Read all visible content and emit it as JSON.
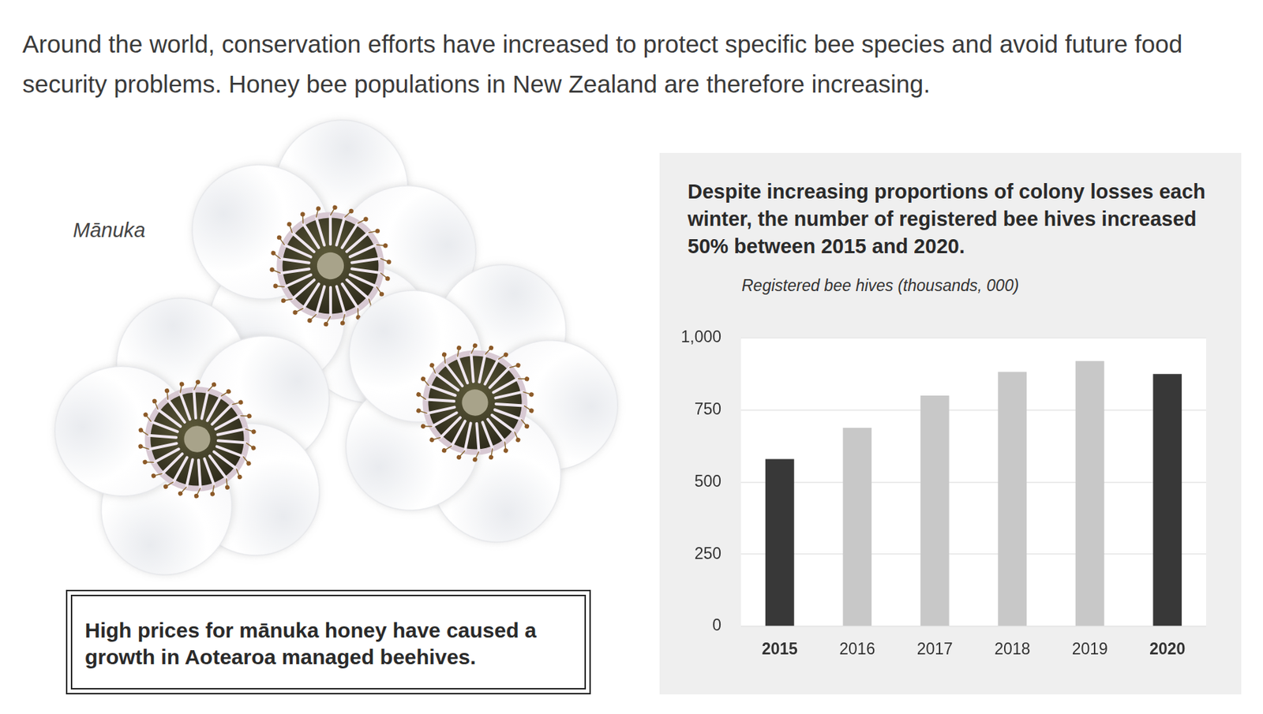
{
  "page": {
    "intro": "Around the world, conservation efforts have increased to protect specific bee species and avoid future food security problems. Honey bee populations in New Zealand are therefore increasing.",
    "illustration_label": "Mānuka",
    "caption": "High prices for mānuka honey have caused a growth in Aotearoa managed beehives."
  },
  "chart_data": {
    "type": "bar",
    "title": "Despite increasing proportions of colony losses each winter, the number of registered bee hives increased 50% between 2015 and 2020.",
    "ylabel": "Registered bee hives (thousands, 000)",
    "categories": [
      "2015",
      "2016",
      "2017",
      "2018",
      "2019",
      "2020"
    ],
    "values": [
      580,
      688,
      800,
      882,
      920,
      875
    ],
    "colors": [
      "#383838",
      "#c8c8c8",
      "#c8c8c8",
      "#c8c8c8",
      "#c8c8c8",
      "#383838"
    ],
    "ylim": [
      0,
      1000
    ],
    "yticks": [
      0,
      250,
      500,
      750,
      {
        "value": 1000,
        "label": "1,000"
      }
    ],
    "grid": true
  }
}
